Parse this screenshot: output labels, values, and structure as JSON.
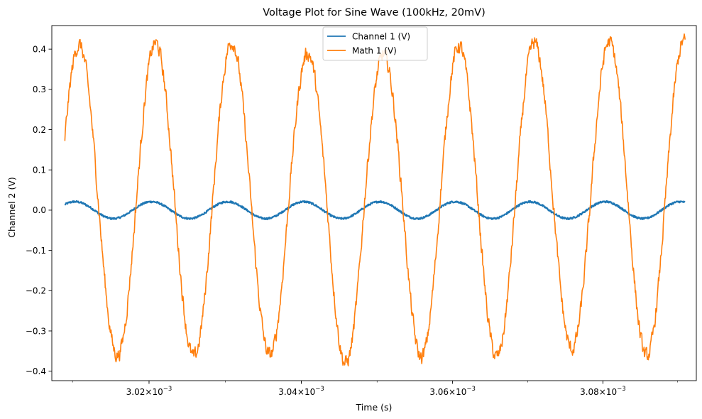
{
  "chart_data": {
    "type": "line",
    "title": "Voltage Plot for Sine Wave (100kHz, 20mV)",
    "xlabel": "Time (s)",
    "ylabel": "Channel 2 (V)",
    "x_scale": "log",
    "x_units": "s",
    "xlim": [
      0.0030073,
      0.0030925
    ],
    "ylim": [
      -0.4235,
      0.4585
    ],
    "x_ticks": [
      {
        "value": 0.00302,
        "base": "3.02",
        "exp": "−3"
      },
      {
        "value": 0.00304,
        "base": "3.04",
        "exp": "−3"
      },
      {
        "value": 0.00306,
        "base": "3.06",
        "exp": "−3"
      },
      {
        "value": 0.00308,
        "base": "3.08",
        "exp": "−3"
      }
    ],
    "y_ticks": [
      {
        "value": 0.4,
        "label": "0.4"
      },
      {
        "value": 0.3,
        "label": "0.3"
      },
      {
        "value": 0.2,
        "label": "0.2"
      },
      {
        "value": 0.1,
        "label": "0.1"
      },
      {
        "value": 0.0,
        "label": "0.0"
      },
      {
        "value": -0.1,
        "label": "−0.1"
      },
      {
        "value": -0.2,
        "label": "−0.2"
      },
      {
        "value": -0.3,
        "label": "−0.3"
      },
      {
        "value": -0.4,
        "label": "−0.4"
      }
    ],
    "grid": false,
    "legend": {
      "position": "upper-center"
    },
    "series": [
      {
        "name": "Channel 1 (V)",
        "color": "#1f77b4",
        "t_start": 0.003009,
        "t_end": 0.003091,
        "frequency_hz": 100000,
        "amplitude": 0.021,
        "offset": 0.0,
        "phase_at_start_periods": 0.117
      },
      {
        "name": "Math 1 (V)",
        "color": "#ff7f0e",
        "t_start": 0.003009,
        "t_end": 0.003091,
        "frequency_hz": 100000,
        "amplitude": 0.385,
        "offset": 0.025,
        "phase_at_start_periods": 0.065,
        "peaks": [
          0.41,
          0.415,
          0.418,
          0.39,
          0.385,
          0.408,
          0.415,
          0.418,
          0.42
        ],
        "troughs": [
          -0.36,
          -0.365,
          -0.36,
          -0.38,
          -0.365,
          -0.365,
          -0.345,
          -0.363
        ]
      }
    ]
  }
}
